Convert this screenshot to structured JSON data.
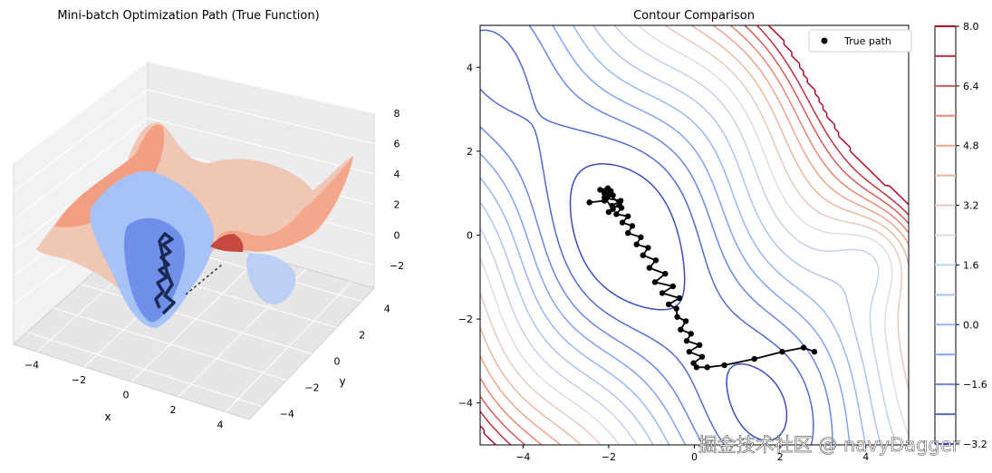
{
  "chart_data": [
    {
      "type": "surface3d",
      "title": "Mini-batch Optimization Path (True Function)",
      "xlabel": "x",
      "ylabel": "y",
      "zlabel": "",
      "x_ticks": [
        -4,
        -2,
        0,
        2,
        4
      ],
      "y_ticks": [
        -4,
        -2,
        0,
        2,
        4
      ],
      "z_ticks": [
        -2,
        0,
        2,
        4,
        6,
        8
      ],
      "xlim": [
        -5,
        5
      ],
      "ylim": [
        -5,
        5
      ],
      "zlim": [
        -3.5,
        8
      ],
      "colormap": "coolwarm",
      "path_color": "#1a2a55"
    },
    {
      "type": "contour",
      "title": "Contour Comparison",
      "xlim": [
        -5,
        5
      ],
      "ylim": [
        -5,
        5
      ],
      "x_ticks": [
        -4,
        -2,
        0,
        2,
        4
      ],
      "y_ticks": [
        -4,
        -2,
        0,
        2,
        4
      ],
      "legend": {
        "label": "True path",
        "placement": "top-right"
      },
      "colorbar": {
        "min": -3.2,
        "max": 8.0,
        "tick_values": [
          -3.2,
          -1.6,
          0.0,
          1.6,
          3.2,
          4.8,
          6.4,
          8.0
        ],
        "tick_labels": [
          "-3.2",
          "-1.6",
          "0.0",
          "1.6",
          "3.2",
          "4.8",
          "6.4",
          "8.0"
        ],
        "levels": [
          -3.2,
          -2.4,
          -1.6,
          -0.8,
          0.0,
          0.8,
          1.6,
          2.4,
          3.2,
          4.0,
          4.8,
          5.6,
          6.4,
          7.2,
          8.0
        ]
      },
      "path": {
        "x": [
          2.8,
          2.55,
          2.05,
          1.4,
          0.7,
          0.3,
          0.05,
          -0.02,
          0.18,
          -0.12,
          0.12,
          -0.18,
          -0.08,
          -0.32,
          -0.2,
          -0.4,
          -0.42,
          -0.6,
          -0.35,
          -0.75,
          -0.5,
          -0.92,
          -0.68,
          -1.05,
          -0.9,
          -1.2,
          -1.08,
          -1.35,
          -1.25,
          -1.55,
          -1.45,
          -1.68,
          -1.55,
          -1.82,
          -1.7,
          -1.92,
          -1.72,
          -2.05,
          -1.9,
          -2.1,
          -1.95,
          -2.2,
          -2.02,
          -2.1,
          -1.9,
          -2.0,
          -1.75,
          -1.98,
          -2.1,
          -2.45
        ],
        "y": [
          -2.78,
          -2.68,
          -2.78,
          -2.95,
          -3.1,
          -3.15,
          -3.15,
          -3.05,
          -2.9,
          -2.78,
          -2.62,
          -2.52,
          -2.35,
          -2.25,
          -2.05,
          -1.95,
          -1.75,
          -1.65,
          -1.5,
          -1.38,
          -1.22,
          -1.12,
          -0.92,
          -0.78,
          -0.6,
          -0.48,
          -0.3,
          -0.22,
          -0.05,
          0.05,
          0.22,
          0.3,
          0.45,
          0.5,
          0.65,
          0.7,
          0.82,
          0.88,
          0.95,
          1.0,
          1.05,
          1.08,
          1.12,
          0.9,
          0.62,
          0.55,
          0.75,
          0.98,
          0.82,
          0.78
        ]
      }
    }
  ],
  "watermark": "掘金技术社区 @ navyDagger"
}
